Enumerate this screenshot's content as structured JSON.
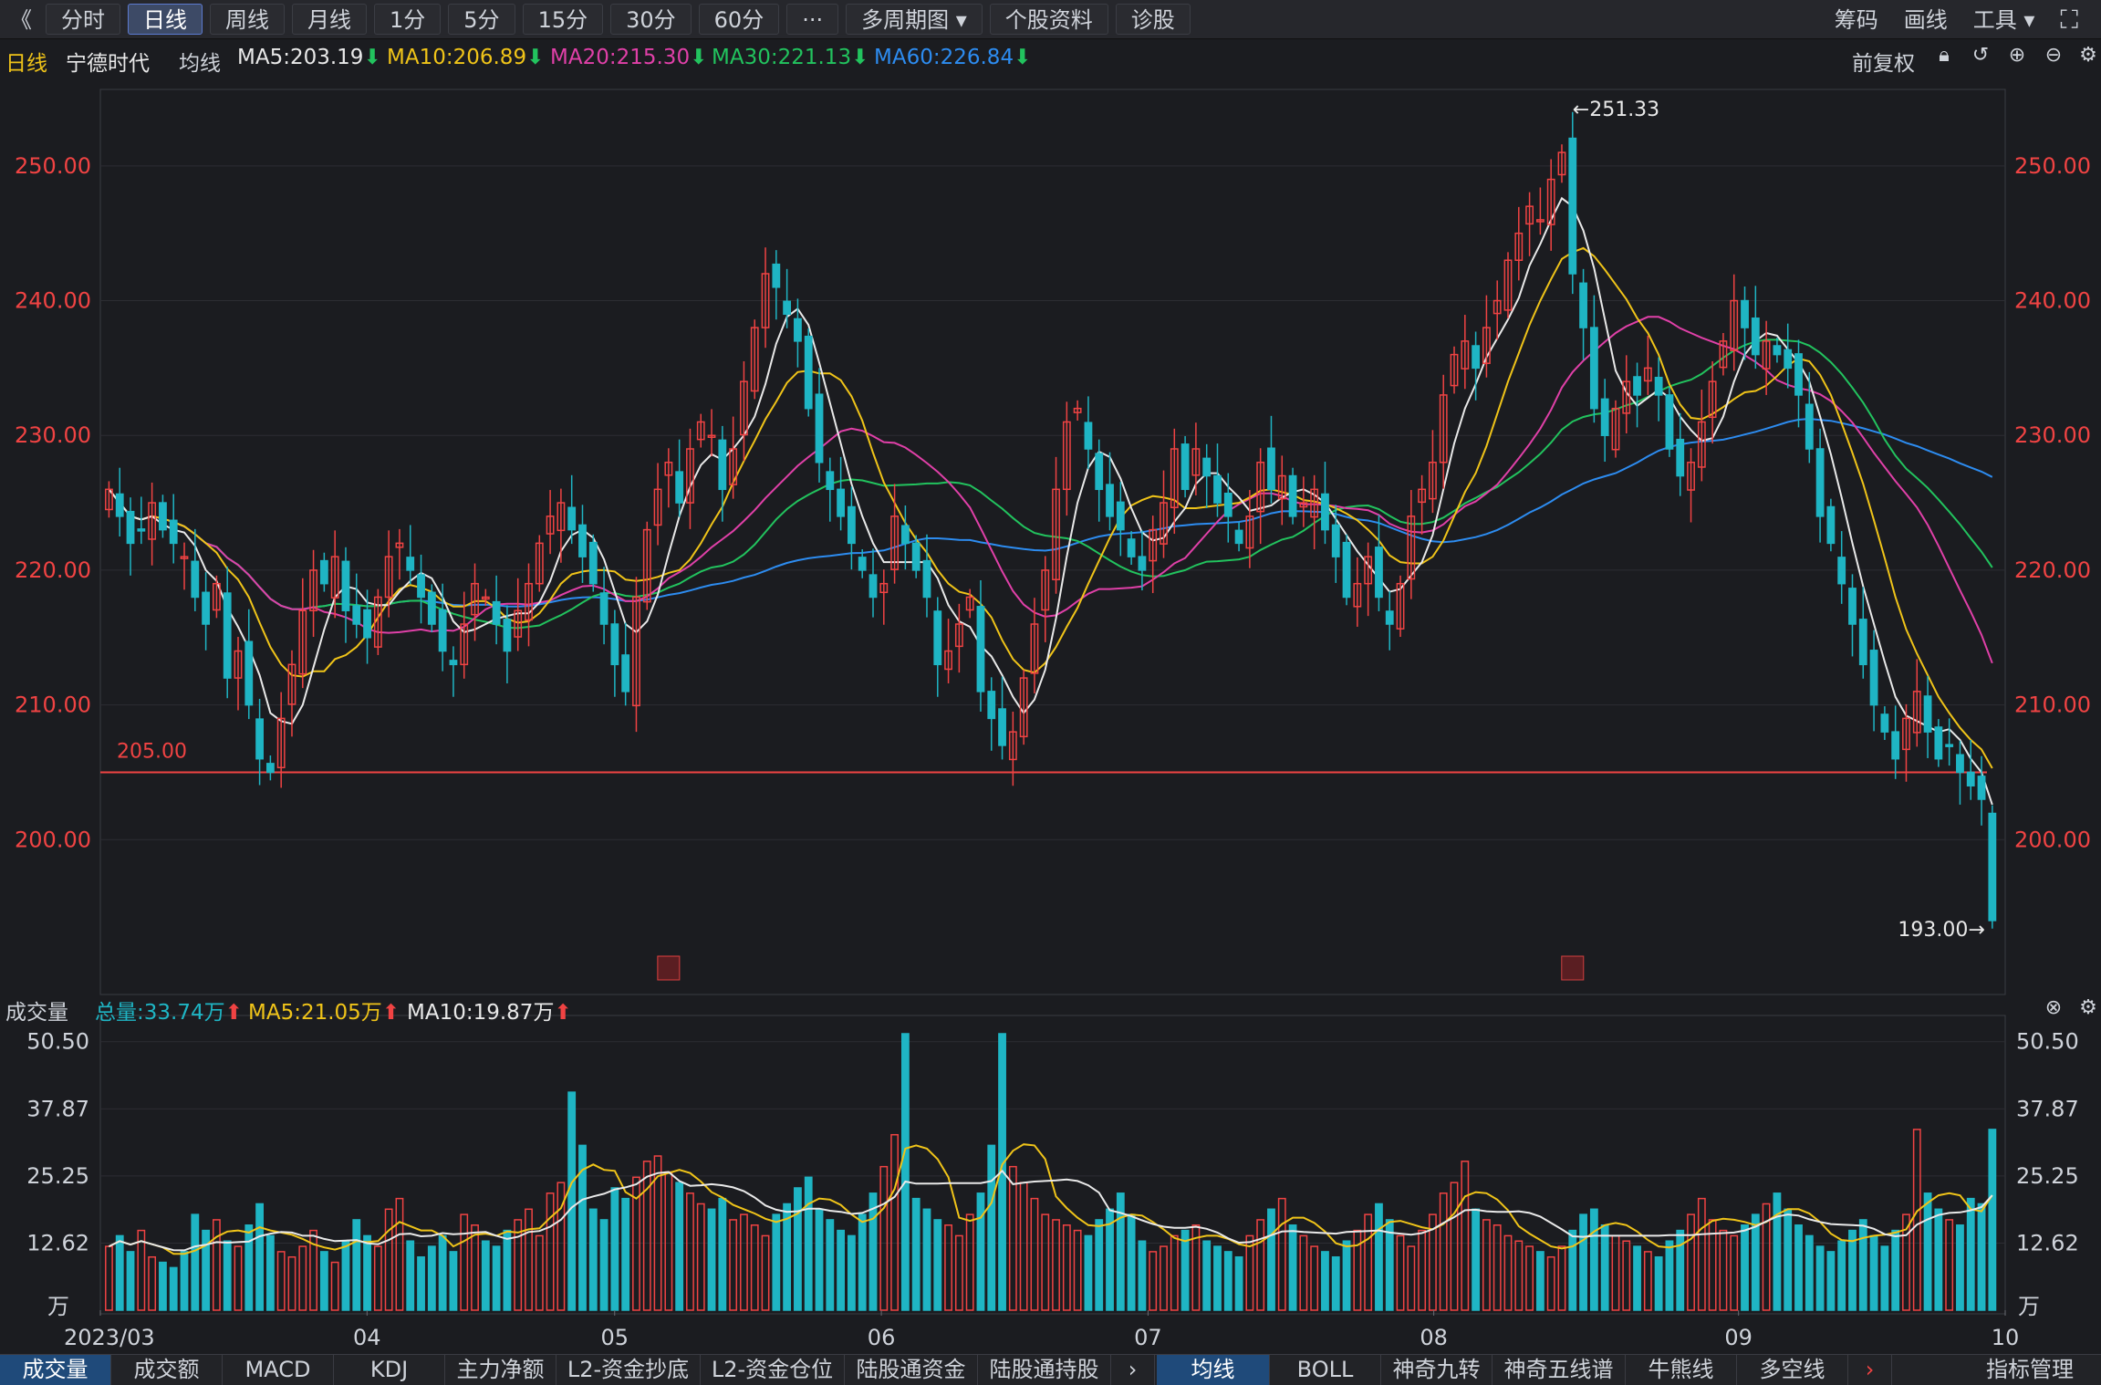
{
  "toolbar": {
    "back": "《",
    "buttons": [
      "分时",
      "日线",
      "周线",
      "月线",
      "1分",
      "5分",
      "15分",
      "30分",
      "60分",
      "···",
      "多周期图",
      "个股资料",
      "诊股"
    ],
    "active_index": 1,
    "right": [
      "筹码",
      "画线",
      "工具"
    ]
  },
  "info": {
    "period": "日线",
    "stock": "宁德时代",
    "ma_label": "均线",
    "ma": [
      {
        "label": "MA5:203.19",
        "color": "#e9e9e9"
      },
      {
        "label": "MA10:206.89",
        "color": "#f0c419"
      },
      {
        "label": "MA20:215.30",
        "color": "#e040a8"
      },
      {
        "label": "MA30:221.13",
        "color": "#22c35e"
      },
      {
        "label": "MA60:226.84",
        "color": "#2d8cf0"
      }
    ],
    "adjust": "前复权"
  },
  "price_axis": {
    "ticks": [
      "250.00",
      "240.00",
      "230.00",
      "220.00",
      "210.00",
      "200.00"
    ],
    "values": [
      250,
      240,
      230,
      220,
      210,
      200
    ]
  },
  "annotations": {
    "high": "←251.33",
    "low": "193.00→",
    "support_line": "205.00",
    "markers": [
      "",
      ""
    ]
  },
  "volume_info": {
    "title": "成交量",
    "items": [
      {
        "label": "总量:33.74万",
        "color": "#1fb5c4"
      },
      {
        "label": "MA5:21.05万",
        "color": "#f0c419"
      },
      {
        "label": "MA10:19.87万",
        "color": "#e9e9e9"
      }
    ]
  },
  "volume_axis": {
    "ticks": [
      "50.50",
      "37.87",
      "25.25",
      "12.62"
    ],
    "unit": "万"
  },
  "date_axis": [
    "2023/03",
    "04",
    "05",
    "06",
    "07",
    "08",
    "09",
    "10"
  ],
  "bottom_tabs": {
    "left": [
      "成交量",
      "成交额",
      "MACD",
      "KDJ",
      "主力净额",
      "L2-资金抄底",
      "L2-资金仓位",
      "陆股通资金",
      "陆股通持股"
    ],
    "right": [
      "均线",
      "BOLL",
      "神奇九转",
      "神奇五线谱",
      "牛熊线",
      "多空线",
      "指标管理"
    ]
  },
  "colors": {
    "up": "#f04343",
    "down": "#1fb5c4",
    "bg": "#1b1c20",
    "grid": "#2c2d33"
  },
  "chart_data": {
    "type": "candlestick",
    "title": "宁德时代 日线",
    "ylim": [
      190,
      255
    ],
    "volume_ylim": [
      0,
      52
    ],
    "support": 205.0,
    "closes": [
      226,
      224,
      222,
      223,
      225,
      223,
      222,
      221,
      218,
      216,
      219,
      212,
      214,
      210,
      206,
      205,
      209,
      213,
      217,
      220,
      219,
      221,
      217,
      216,
      215,
      218,
      221,
      222,
      220,
      218,
      216,
      214,
      213,
      216,
      219,
      218,
      216,
      214,
      217,
      219,
      222,
      224,
      225,
      223,
      221,
      219,
      216,
      213,
      211,
      218,
      223,
      226,
      228,
      225,
      229,
      231,
      230,
      226,
      229,
      234,
      238,
      242,
      241,
      239,
      237,
      232,
      228,
      226,
      224,
      222,
      220,
      218,
      219,
      224,
      222,
      220,
      218,
      213,
      214,
      216,
      218,
      211,
      209,
      207,
      208,
      212,
      216,
      220,
      226,
      231,
      232,
      229,
      226,
      224,
      223,
      221,
      220,
      223,
      225,
      229,
      226,
      229,
      227,
      225,
      224,
      222,
      224,
      228,
      226,
      227,
      224,
      225,
      226,
      223,
      221,
      218,
      219,
      221,
      218,
      216,
      219,
      224,
      226,
      228,
      233,
      236,
      237,
      235,
      238,
      240,
      243,
      245,
      247,
      246,
      249,
      251,
      242,
      238,
      232,
      230,
      232,
      234,
      233,
      235,
      233,
      229,
      227,
      228,
      231,
      234,
      237,
      240,
      238,
      236,
      237,
      236,
      235,
      233,
      229,
      224,
      222,
      219,
      216,
      213,
      210,
      208,
      206,
      209,
      211,
      208,
      206,
      207,
      205,
      204,
      203,
      194
    ],
    "volumes": [
      12,
      14,
      11,
      15,
      10,
      9,
      8,
      11,
      18,
      15,
      17,
      13,
      12,
      16,
      20,
      14,
      11,
      10,
      12,
      15,
      11,
      9,
      13,
      17,
      14,
      12,
      19,
      21,
      13,
      10,
      12,
      14,
      11,
      18,
      16,
      13,
      12,
      15,
      17,
      19,
      14,
      22,
      24,
      41,
      31,
      19,
      17,
      23,
      21,
      25,
      28,
      29,
      26,
      24,
      22,
      20,
      19,
      21,
      17,
      18,
      16,
      14,
      18,
      20,
      23,
      25,
      19,
      17,
      15,
      14,
      18,
      22,
      27,
      33,
      52,
      21,
      19,
      17,
      16,
      14,
      18,
      22,
      31,
      52,
      27,
      24,
      21,
      18,
      17,
      16,
      15,
      14,
      17,
      19,
      22,
      18,
      13,
      11,
      12,
      14,
      15,
      16,
      13,
      12,
      11,
      10,
      14,
      17,
      19,
      21,
      16,
      14,
      12,
      11,
      10,
      13,
      15,
      18,
      20,
      17,
      14,
      12,
      15,
      18,
      22,
      24,
      28,
      19,
      17,
      16,
      14,
      13,
      12,
      11,
      10,
      12,
      15,
      18,
      19,
      16,
      14,
      13,
      12,
      11,
      10,
      13,
      15,
      18,
      21,
      17,
      15,
      14,
      16,
      18,
      20,
      22,
      19,
      16,
      14,
      12,
      11,
      13,
      15,
      17,
      14,
      12,
      15,
      18,
      34,
      22,
      19,
      17,
      16,
      21,
      20,
      34
    ]
  }
}
